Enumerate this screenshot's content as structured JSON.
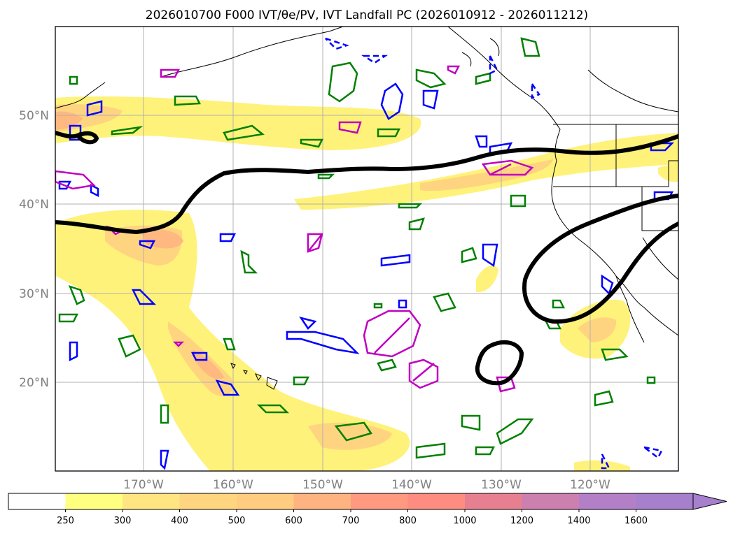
{
  "title": "2026010700 F000 IVT/θe/PV, IVT Landfall PC (2026010912 - 2026011212)",
  "map": {
    "lon_range": [
      -180,
      -110
    ],
    "lat_range": [
      10,
      60
    ],
    "lat_labels": [
      {
        "lat": 20,
        "label": "20°N"
      },
      {
        "lat": 30,
        "label": "30°N"
      },
      {
        "lat": 40,
        "label": "40°N"
      },
      {
        "lat": 50,
        "label": "50°N"
      }
    ],
    "lon_labels": [
      {
        "lon": -170,
        "label": "170°W"
      },
      {
        "lon": -160,
        "label": "160°W"
      },
      {
        "lon": -150,
        "label": "150°W"
      },
      {
        "lon": -140,
        "label": "140°W"
      },
      {
        "lon": -130,
        "label": "130°W"
      },
      {
        "lon": -120,
        "label": "120°W"
      }
    ]
  },
  "colorbar": {
    "labels": [
      "250",
      "300",
      "400",
      "500",
      "600",
      "700",
      "800",
      "1000",
      "1200",
      "1400",
      "1600"
    ],
    "colors": [
      "#ffffff",
      "#ffff80",
      "#ffe680",
      "#ffd580",
      "#ffcc80",
      "#ffb380",
      "#ff9980",
      "#ff8c80",
      "#e68090",
      "#cc80b0",
      "#b380c8",
      "#a680cc"
    ],
    "extend": "max"
  },
  "contour_colors": {
    "ivt_landfall": "#000000",
    "theta_e": "#008000",
    "pv_positive": "#0000ff",
    "pv_other": "#c000c0"
  }
}
